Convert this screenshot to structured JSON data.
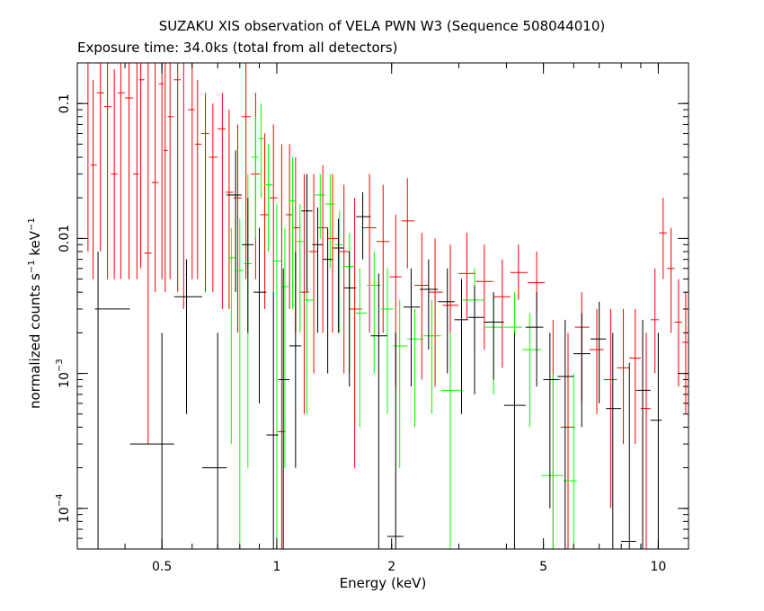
{
  "chart_data": {
    "type": "scatter",
    "title": "SUZAKU XIS observation of VELA PWN W3 (Sequence 508044010)",
    "subtitle": "Exposure time: 34.0ks (total from all detectors)",
    "xlabel": "Energy (keV)",
    "ylabel": {
      "prefix": "normalized counts s",
      "sup1": "−1",
      "mid": " keV",
      "sup2": "−1"
    },
    "xscale": "log",
    "yscale": "log",
    "xlim": [
      0.3,
      12
    ],
    "ylim": [
      5e-05,
      0.2
    ],
    "x_ticks": [
      {
        "value": 0.5,
        "label": "0.5"
      },
      {
        "value": 1,
        "label": "1"
      },
      {
        "value": 2,
        "label": "2"
      },
      {
        "value": 5,
        "label": "5"
      },
      {
        "value": 10,
        "label": "10"
      }
    ],
    "y_ticks": [
      {
        "value": 0.1,
        "label": "0.1"
      },
      {
        "value": 0.01,
        "label": "0.01"
      },
      {
        "value": 0.001,
        "mantissa": "10",
        "exp": "−3"
      },
      {
        "value": 0.0001,
        "mantissa": "10",
        "exp": "−4"
      }
    ],
    "grid": false,
    "series": [
      {
        "color": "#ff0000",
        "points": [
          [
            0.32,
            0.2,
            0.008,
            0.2
          ],
          [
            0.33,
            0.035,
            0.005,
            0.15
          ],
          [
            0.345,
            0.12,
            0.008,
            0.2
          ],
          [
            0.36,
            0.095,
            0.005,
            0.2
          ],
          [
            0.375,
            0.03,
            0.005,
            0.18
          ],
          [
            0.39,
            0.12,
            0.005,
            0.2
          ],
          [
            0.41,
            0.11,
            0.005,
            0.2
          ],
          [
            0.43,
            0.03,
            0.005,
            0.2
          ],
          [
            0.44,
            0.15,
            0.006,
            0.2
          ],
          [
            0.46,
            0.0078,
            0.0003,
            0.2
          ],
          [
            0.48,
            0.026,
            0.004,
            0.2
          ],
          [
            0.5,
            0.14,
            0.005,
            0.2
          ],
          [
            0.51,
            0.045,
            0.004,
            0.2
          ],
          [
            0.525,
            0.08,
            0.005,
            0.2
          ],
          [
            0.55,
            0.15,
            0.004,
            0.2
          ],
          [
            0.57,
            0.2,
            0.003,
            0.2
          ],
          [
            0.6,
            0.09,
            0.005,
            0.2
          ],
          [
            0.62,
            0.05,
            0.005,
            0.15
          ],
          [
            0.65,
            0.06,
            0.004,
            0.12
          ],
          [
            0.68,
            0.04,
            0.004,
            0.1
          ],
          [
            0.72,
            0.065,
            0.003,
            0.12
          ],
          [
            0.75,
            0.022,
            0.003,
            0.09
          ],
          [
            0.79,
            0.02,
            0.002,
            0.07
          ],
          [
            0.83,
            0.08,
            0.005,
            0.2
          ],
          [
            0.88,
            0.03,
            0.005,
            0.12
          ],
          [
            0.93,
            0.015,
            0.003,
            0.06
          ],
          [
            0.98,
            0.02,
            0.004,
            0.07
          ],
          [
            1.03,
            0.00037,
            5e-05,
            0.05
          ],
          [
            1.08,
            0.015,
            0.003,
            0.05
          ],
          [
            1.12,
            0.012,
            0.002,
            0.04
          ],
          [
            1.18,
            0.004,
            0.0005,
            0.03
          ],
          [
            1.25,
            0.008,
            0.001,
            0.03
          ],
          [
            1.32,
            0.012,
            0.002,
            0.035
          ],
          [
            1.4,
            0.01,
            0.002,
            0.03
          ],
          [
            1.5,
            0.008,
            0.001,
            0.025
          ],
          [
            1.6,
            0.003,
            0.0002,
            0.02
          ],
          [
            1.75,
            0.012,
            0.002,
            0.03
          ],
          [
            1.9,
            0.0095,
            0.002,
            0.025
          ],
          [
            2.05,
            0.0052,
            0.0008,
            0.015
          ],
          [
            2.2,
            0.0135,
            0.006,
            0.028
          ],
          [
            2.4,
            0.0045,
            0.0009,
            0.011
          ],
          [
            2.6,
            0.004,
            0.0008,
            0.01
          ],
          [
            2.85,
            0.0032,
            0.0006,
            0.009
          ],
          [
            3.15,
            0.0055,
            0.0025,
            0.011
          ],
          [
            3.5,
            0.0048,
            0.0015,
            0.009
          ],
          [
            3.9,
            0.0037,
            0.0011,
            0.007
          ],
          [
            4.3,
            0.0056,
            0.0035,
            0.009
          ],
          [
            4.8,
            0.0047,
            0.0028,
            0.008
          ],
          [
            5.3,
            0.0009,
            5e-05,
            0.0025
          ],
          [
            5.8,
            0.0004,
            5e-05,
            0.002
          ],
          [
            6.3,
            0.0022,
            0.0006,
            0.004
          ],
          [
            6.9,
            0.0015,
            0.0005,
            0.003
          ],
          [
            7.5,
            0.0009,
            0.0001,
            0.003
          ],
          [
            8.1,
            0.0011,
            0.0003,
            0.003
          ],
          [
            8.7,
            0.0013,
            0.0003,
            0.003
          ],
          [
            9.3,
            0.00055,
            5e-05,
            0.002
          ],
          [
            9.8,
            0.0025,
            0.001,
            0.006
          ],
          [
            10.3,
            0.011,
            0.005,
            0.02
          ],
          [
            10.8,
            0.006,
            0.002,
            0.012
          ],
          [
            11.3,
            0.0024,
            0.0008,
            0.005
          ],
          [
            11.8,
            0.0017,
            0.0005,
            0.004
          ]
        ]
      },
      {
        "color": "#00ff00",
        "points": [
          [
            0.76,
            0.0072,
            0.0003,
            0.012
          ],
          [
            0.8,
            0.0058,
            5e-05,
            0.014
          ],
          [
            0.84,
            0.0065,
            0.0002,
            0.03
          ],
          [
            0.88,
            0.04,
            0.01,
            0.08
          ],
          [
            0.91,
            0.055,
            0.02,
            0.1
          ],
          [
            0.95,
            0.025,
            0.008,
            0.05
          ],
          [
            1.0,
            0.0068,
            5e-05,
            0.018
          ],
          [
            1.05,
            0.0044,
            0.0002,
            0.012
          ],
          [
            1.1,
            0.019,
            0.003,
            0.04
          ],
          [
            1.15,
            0.0095,
            0.002,
            0.018
          ],
          [
            1.2,
            0.0035,
            0.0005,
            0.01
          ],
          [
            1.3,
            0.021,
            0.01,
            0.03
          ],
          [
            1.38,
            0.018,
            0.006,
            0.03
          ],
          [
            1.46,
            0.009,
            0.002,
            0.016
          ],
          [
            1.55,
            0.0062,
            0.001,
            0.011
          ],
          [
            1.65,
            0.0028,
            0.0004,
            0.006
          ],
          [
            1.8,
            0.0045,
            0.001,
            0.008
          ],
          [
            1.95,
            0.003,
            0.0005,
            0.006
          ],
          [
            2.1,
            0.0016,
            0.0002,
            0.0035
          ],
          [
            2.3,
            0.0018,
            0.0004,
            0.003
          ],
          [
            2.55,
            0.0019,
            0.0005,
            0.0035
          ],
          [
            2.85,
            0.00075,
            5e-05,
            0.002
          ],
          [
            3.3,
            0.0035,
            0.0015,
            0.006
          ],
          [
            3.7,
            0.0022,
            0.0007,
            0.004
          ],
          [
            4.2,
            0.0022,
            0.0007,
            0.004
          ],
          [
            4.6,
            0.0015,
            0.0004,
            0.0028
          ],
          [
            5.3,
            0.000175,
            5e-05,
            0.001
          ],
          [
            6.0,
            0.00016,
            5e-05,
            0.001
          ]
        ]
      },
      {
        "color": "#000000",
        "points": [
          [
            0.34,
            0.003,
            5e-05,
            0.008
          ],
          [
            0.5,
            0.0003,
            5e-05,
            0.002
          ],
          [
            0.58,
            0.0037,
            0.0005,
            0.007
          ],
          [
            0.7,
            0.0002,
            5e-05,
            0.002
          ],
          [
            0.78,
            0.021,
            0.004,
            0.045
          ],
          [
            0.84,
            0.009,
            0.002,
            0.02
          ],
          [
            0.9,
            0.004,
            0.0006,
            0.012
          ],
          [
            0.98,
            0.00035,
            5e-05,
            0.004
          ],
          [
            1.04,
            0.0009,
            5e-05,
            0.006
          ],
          [
            1.12,
            0.0016,
            0.0002,
            0.008
          ],
          [
            1.2,
            0.016,
            0.004,
            0.03
          ],
          [
            1.28,
            0.009,
            0.002,
            0.017
          ],
          [
            1.36,
            0.007,
            0.001,
            0.012
          ],
          [
            1.45,
            0.0085,
            0.002,
            0.014
          ],
          [
            1.55,
            0.0043,
            0.0008,
            0.008
          ],
          [
            1.68,
            0.0145,
            0.007,
            0.022
          ],
          [
            1.85,
            0.0019,
            5e-05,
            0.0055
          ],
          [
            2.05,
            6.2e-05,
            5e-05,
            0.002
          ],
          [
            2.25,
            0.0031,
            0.0008,
            0.006
          ],
          [
            2.5,
            0.0042,
            0.0015,
            0.007
          ],
          [
            2.8,
            0.0034,
            0.001,
            0.006
          ],
          [
            3.05,
            0.0025,
            0.0005,
            0.005
          ],
          [
            3.3,
            0.0026,
            0.0007,
            0.0045
          ],
          [
            3.7,
            0.0024,
            0.0009,
            0.004
          ],
          [
            4.2,
            0.00058,
            5e-05,
            0.002
          ],
          [
            4.8,
            0.0022,
            0.0008,
            0.004
          ],
          [
            5.2,
            0.0009,
            0.0001,
            0.002
          ],
          [
            5.7,
            0.00095,
            5e-05,
            0.0025
          ],
          [
            6.3,
            0.0014,
            0.0004,
            0.0028
          ],
          [
            7.0,
            0.0018,
            0.0006,
            0.0034
          ],
          [
            7.6,
            0.00055,
            5e-05,
            0.002
          ],
          [
            8.4,
            5.7e-05,
            5e-05,
            0.0012
          ],
          [
            9.1,
            0.00075,
            5e-05,
            0.0025
          ],
          [
            10.0,
            0.00045,
            5e-05,
            0.002
          ]
        ]
      }
    ]
  }
}
